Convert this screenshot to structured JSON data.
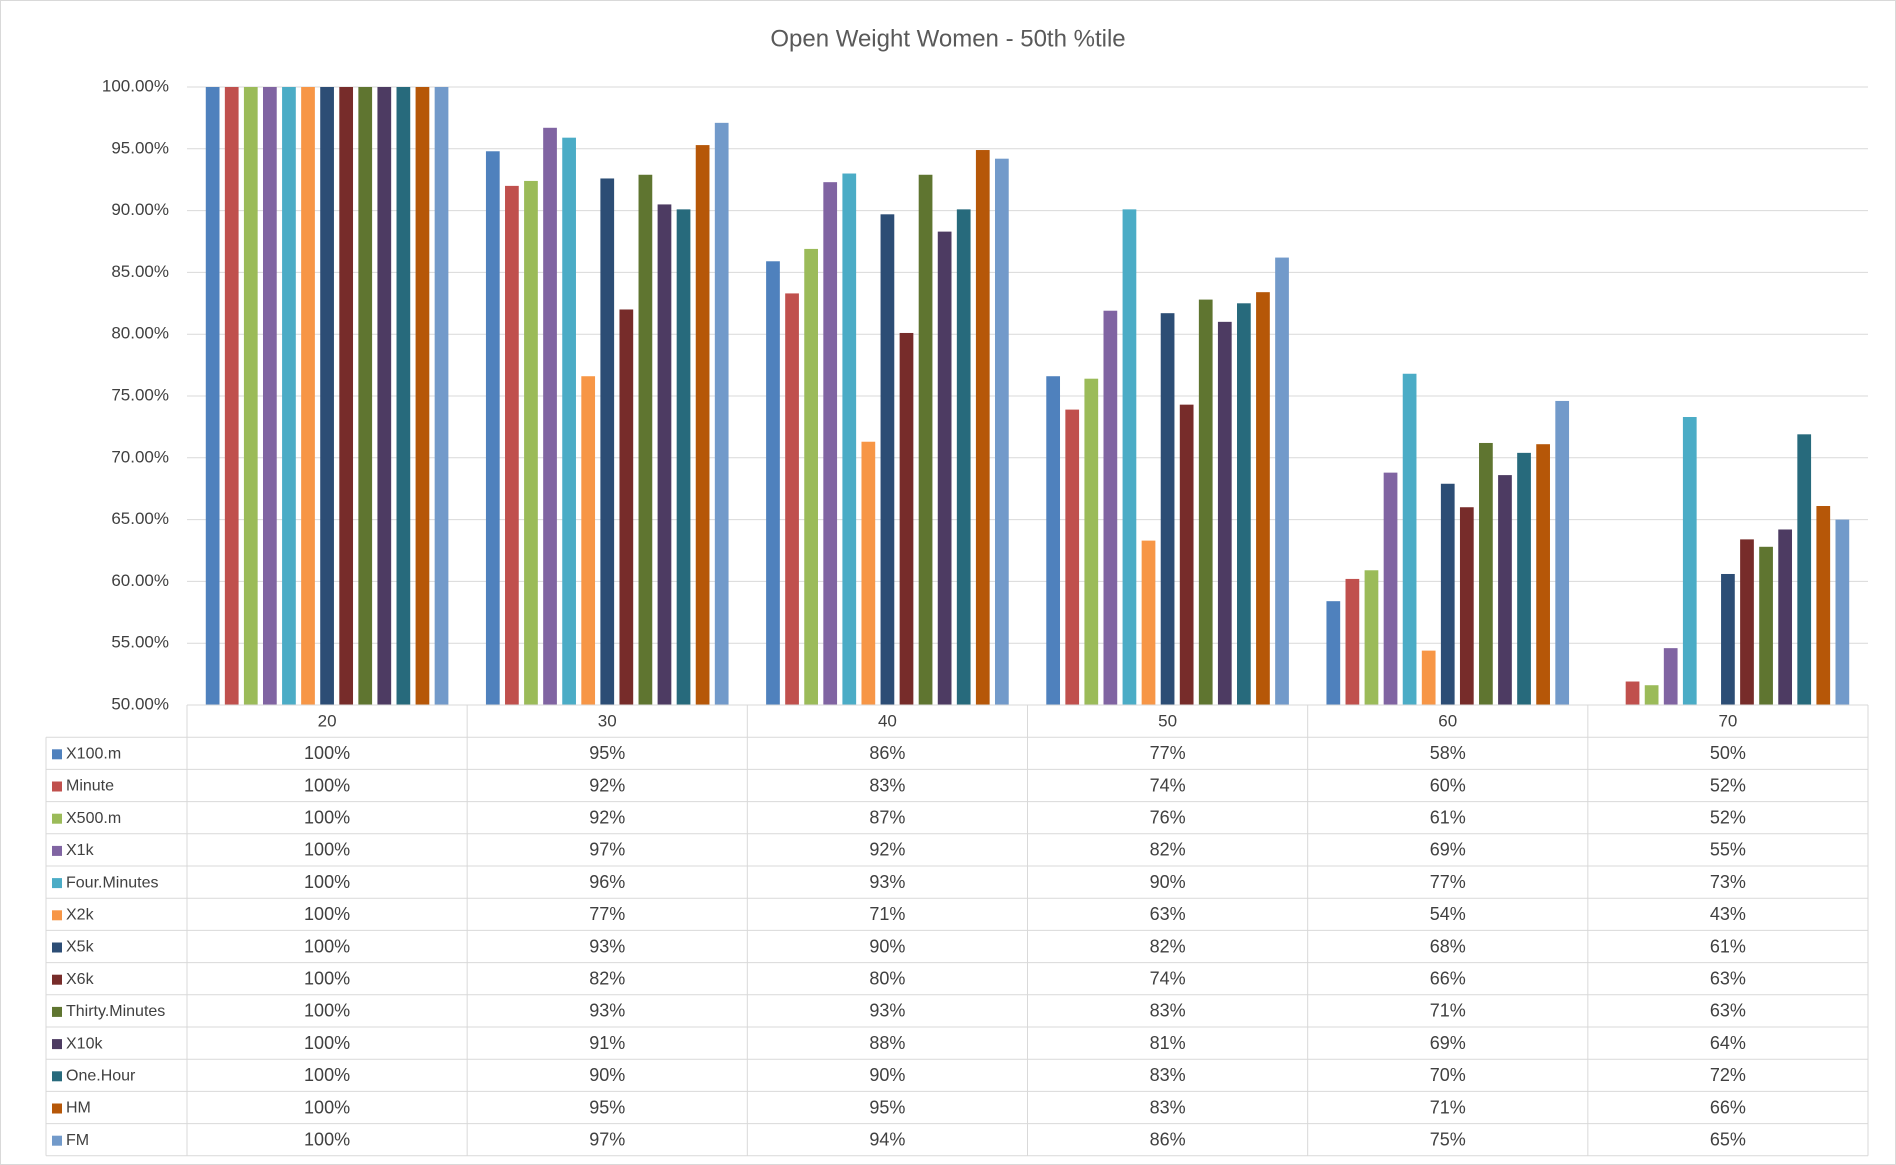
{
  "chart_data": {
    "type": "bar",
    "title": "Open Weight Women - 50th %tile",
    "categories": [
      "20",
      "30",
      "40",
      "50",
      "60",
      "70"
    ],
    "ylim": [
      50,
      100
    ],
    "yticks": [
      {
        "value": 50,
        "label": "50.00%"
      },
      {
        "value": 55,
        "label": "55.00%"
      },
      {
        "value": 60,
        "label": "60.00%"
      },
      {
        "value": 65,
        "label": "65.00%"
      },
      {
        "value": 70,
        "label": "70.00%"
      },
      {
        "value": 75,
        "label": "75.00%"
      },
      {
        "value": 80,
        "label": "80.00%"
      },
      {
        "value": 85,
        "label": "85.00%"
      },
      {
        "value": 90,
        "label": "90.00%"
      },
      {
        "value": 95,
        "label": "95.00%"
      },
      {
        "value": 100,
        "label": "100.00%"
      }
    ],
    "grid": true,
    "series": [
      {
        "name": "X100.m",
        "color": "#4f81bd",
        "values": [
          100,
          94.8,
          85.9,
          76.6,
          58.4,
          50
        ],
        "value_labels": [
          "100%",
          "95%",
          "86%",
          "77%",
          "58%",
          "50%"
        ]
      },
      {
        "name": "Minute",
        "color": "#c0504d",
        "values": [
          100,
          92.0,
          83.3,
          73.9,
          60.2,
          51.9
        ],
        "value_labels": [
          "100%",
          "92%",
          "83%",
          "74%",
          "60%",
          "52%"
        ]
      },
      {
        "name": "X500.m",
        "color": "#9bbb59",
        "values": [
          100,
          92.4,
          86.9,
          76.4,
          60.9,
          51.6
        ],
        "value_labels": [
          "100%",
          "92%",
          "87%",
          "76%",
          "61%",
          "52%"
        ]
      },
      {
        "name": "X1k",
        "color": "#8064a2",
        "values": [
          100,
          96.7,
          92.3,
          81.9,
          68.8,
          54.6
        ],
        "value_labels": [
          "100%",
          "97%",
          "92%",
          "82%",
          "69%",
          "55%"
        ]
      },
      {
        "name": "Four.Minutes",
        "color": "#4bacc6",
        "values": [
          100,
          95.9,
          93.0,
          90.1,
          76.8,
          73.3
        ],
        "value_labels": [
          "100%",
          "96%",
          "93%",
          "90%",
          "77%",
          "73%"
        ]
      },
      {
        "name": "X2k",
        "color": "#f79646",
        "values": [
          100,
          76.6,
          71.3,
          63.3,
          54.4,
          43
        ],
        "value_labels": [
          "100%",
          "77%",
          "71%",
          "63%",
          "54%",
          "43%"
        ]
      },
      {
        "name": "X5k",
        "color": "#2c4d75",
        "values": [
          100,
          92.6,
          89.7,
          81.7,
          67.9,
          60.6
        ],
        "value_labels": [
          "100%",
          "93%",
          "90%",
          "82%",
          "68%",
          "61%"
        ]
      },
      {
        "name": "X6k",
        "color": "#772c2a",
        "values": [
          100,
          82.0,
          80.1,
          74.3,
          66.0,
          63.4
        ],
        "value_labels": [
          "100%",
          "82%",
          "80%",
          "74%",
          "66%",
          "63%"
        ]
      },
      {
        "name": "Thirty.Minutes",
        "color": "#5f7530",
        "values": [
          100,
          92.9,
          92.9,
          82.8,
          71.2,
          62.8
        ],
        "value_labels": [
          "100%",
          "93%",
          "93%",
          "83%",
          "71%",
          "63%"
        ]
      },
      {
        "name": "X10k",
        "color": "#4d3b62",
        "values": [
          100,
          90.5,
          88.3,
          81.0,
          68.6,
          64.2
        ],
        "value_labels": [
          "100%",
          "91%",
          "88%",
          "81%",
          "69%",
          "64%"
        ]
      },
      {
        "name": "One.Hour",
        "color": "#276a7c",
        "values": [
          100,
          90.1,
          90.1,
          82.5,
          70.4,
          71.9
        ],
        "value_labels": [
          "100%",
          "90%",
          "90%",
          "83%",
          "70%",
          "72%"
        ]
      },
      {
        "name": "HM",
        "color": "#b65708",
        "values": [
          100,
          95.3,
          94.9,
          83.4,
          71.1,
          66.1
        ],
        "value_labels": [
          "100%",
          "95%",
          "95%",
          "83%",
          "71%",
          "66%"
        ]
      },
      {
        "name": "FM",
        "color": "#729aca",
        "values": [
          100,
          97.1,
          94.2,
          86.2,
          74.6,
          65.0
        ],
        "value_labels": [
          "100%",
          "97%",
          "94%",
          "86%",
          "75%",
          "65%"
        ]
      }
    ]
  }
}
